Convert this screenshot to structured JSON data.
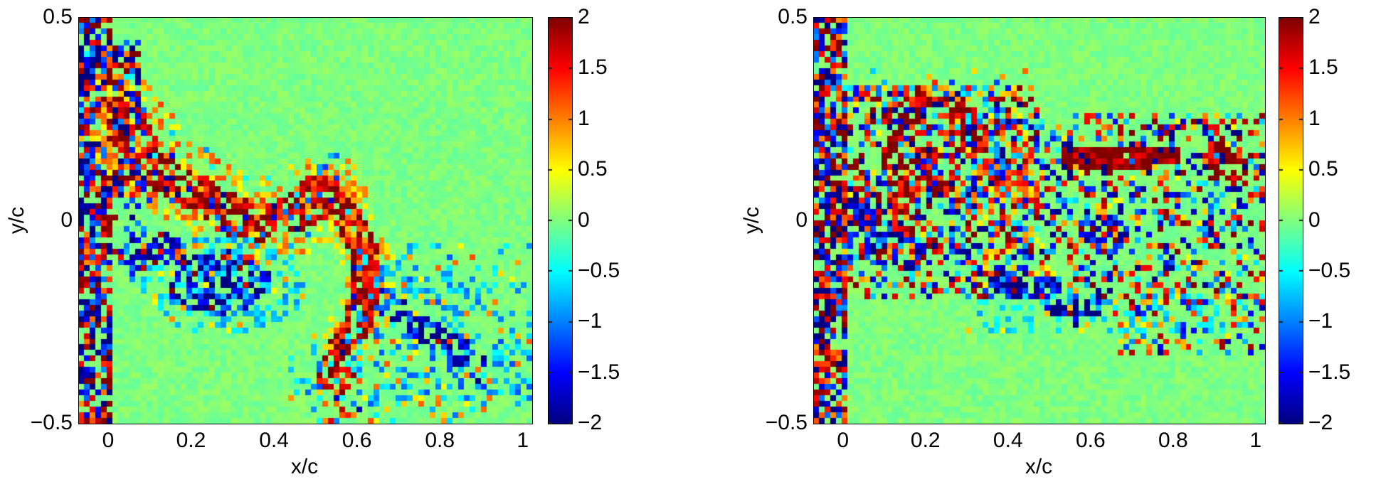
{
  "chart_data": {
    "type": "heatmap",
    "colormap": "jet",
    "figures": [
      {
        "id": "left-vorticity-field",
        "xlabel": "x/c",
        "ylabel": "y/c",
        "xlim": [
          -0.072,
          1.021
        ],
        "ylim": [
          -0.5,
          0.5
        ],
        "xticks": [
          0,
          0.2,
          0.4,
          0.6,
          0.8,
          1
        ],
        "xtick_labels": [
          "0",
          "0.2",
          "0.4",
          "0.6",
          "0.8",
          "1"
        ],
        "yticks": [
          0.5,
          0,
          -0.5
        ],
        "ytick_labels": [
          "0.5",
          "0",
          "−0.5"
        ],
        "colorbar": {
          "vmin": -2,
          "vmax": 2,
          "ticks": [
            2,
            1.5,
            1,
            0.5,
            0,
            -0.5,
            -1,
            -1.5,
            -2
          ],
          "tick_labels": [
            "2",
            "1.5",
            "1",
            "0.5",
            "0",
            "−0.5",
            "−1",
            "−1.5",
            "−2"
          ]
        },
        "grid": {
          "cols": 80,
          "rows": 72
        },
        "seed": 1337,
        "background_noise": 0.11,
        "features": [
          {
            "shape": "rect",
            "x": [
              -0.072,
              0.008
            ],
            "y": [
              -0.5,
              0.5
            ],
            "density": 0.72,
            "amp": [
              0.9,
              2.5
            ],
            "neg_prob": 0.52
          },
          {
            "shape": "rect",
            "x": [
              -0.072,
              -0.034
            ],
            "y": [
              0.4,
              0.5
            ],
            "density": 0.5,
            "amp": [
              0.4,
              1.0
            ],
            "neg_prob": 0.9
          },
          {
            "shape": "rect",
            "x": [
              0.005,
              0.075
            ],
            "y": [
              0.06,
              0.44
            ],
            "density": 0.78,
            "amp": [
              1.0,
              2.5
            ],
            "neg_prob": 0.6
          },
          {
            "shape": "ellipse",
            "c": [
              0.06,
              -0.02
            ],
            "r": [
              0.05,
              0.13
            ],
            "density": 0.45,
            "amp": [
              0.8,
              2.2
            ],
            "neg_prob": 0.7
          },
          {
            "shape": "path",
            "pts": [
              [
                0.02,
                0.26
              ],
              [
                0.12,
                0.13
              ],
              [
                0.24,
                0.04
              ],
              [
                0.34,
                -0.01
              ],
              [
                0.44,
                0.02
              ],
              [
                0.52,
                0.06
              ]
            ],
            "width": 0.105,
            "density": 0.38,
            "amp": [
              0.4,
              1.3
            ],
            "neg_prob": 0.17
          },
          {
            "shape": "path",
            "pts": [
              [
                0.02,
                0.26
              ],
              [
                0.12,
                0.13
              ],
              [
                0.24,
                0.04
              ],
              [
                0.34,
                -0.01
              ],
              [
                0.44,
                0.02
              ],
              [
                0.52,
                0.06
              ]
            ],
            "width": 0.05,
            "density": 0.6,
            "amp": [
              1.0,
              2.4
            ],
            "neg_prob": 0.15
          },
          {
            "shape": "path",
            "pts": [
              [
                0.5,
                0.08
              ],
              [
                0.57,
                0.02
              ],
              [
                0.615,
                -0.07
              ],
              [
                0.625,
                -0.17
              ],
              [
                0.595,
                -0.26
              ],
              [
                0.56,
                -0.31
              ]
            ],
            "width": 0.06,
            "density": 0.3,
            "amp": [
              0.5,
              1.1
            ],
            "neg_prob": 0.12
          },
          {
            "shape": "path",
            "pts": [
              [
                0.5,
                0.08
              ],
              [
                0.57,
                0.02
              ],
              [
                0.615,
                -0.07
              ],
              [
                0.625,
                -0.17
              ],
              [
                0.595,
                -0.26
              ],
              [
                0.56,
                -0.31
              ]
            ],
            "width": 0.034,
            "density": 0.85,
            "amp": [
              1.1,
              2.5
            ],
            "neg_prob": 0.06
          },
          {
            "shape": "ellipse",
            "c": [
              0.28,
              -0.16
            ],
            "r": [
              0.2,
              0.12
            ],
            "density": 0.38,
            "amp": [
              0.4,
              1.0
            ],
            "neg_prob": 0.85
          },
          {
            "shape": "ellipse",
            "c": [
              0.26,
              -0.15
            ],
            "r": [
              0.13,
              0.08
            ],
            "density": 0.6,
            "amp": [
              1.0,
              2.5
            ],
            "neg_prob": 0.88
          },
          {
            "shape": "ellipse",
            "c": [
              0.13,
              -0.07
            ],
            "r": [
              0.045,
              0.04
            ],
            "density": 0.55,
            "amp": [
              1.0,
              2.2
            ],
            "neg_prob": 0.85
          },
          {
            "shape": "rect",
            "x": [
              0.44,
              1.021
            ],
            "y": [
              -0.5,
              -0.28
            ],
            "density": 0.16,
            "amp": [
              0.4,
              1.2
            ],
            "neg_prob": 0.6
          },
          {
            "shape": "rect",
            "x": [
              0.6,
              1.021
            ],
            "y": [
              -0.45,
              -0.06
            ],
            "density": 0.22,
            "amp": [
              0.4,
              1.2
            ],
            "neg_prob": 0.75
          },
          {
            "shape": "path",
            "pts": [
              [
                0.66,
                -0.2
              ],
              [
                0.76,
                -0.27
              ],
              [
                0.87,
                -0.34
              ],
              [
                0.9,
                -0.38
              ]
            ],
            "width": 0.032,
            "density": 0.55,
            "amp": [
              1.0,
              2.4
            ],
            "neg_prob": 0.92
          },
          {
            "shape": "path",
            "pts": [
              [
                0.63,
                -0.1
              ],
              [
                0.75,
                -0.16
              ],
              [
                0.85,
                -0.2
              ]
            ],
            "width": 0.03,
            "density": 0.4,
            "amp": [
              0.5,
              1.2
            ],
            "neg_prob": 0.85
          },
          {
            "shape": "ellipse",
            "c": [
              0.545,
              -0.385
            ],
            "r": [
              0.05,
              0.055
            ],
            "density": 0.5,
            "amp": [
              1.0,
              2.3
            ],
            "neg_prob": 0.12
          },
          {
            "shape": "ellipse",
            "c": [
              0.56,
              -0.47
            ],
            "r": [
              0.05,
              0.035
            ],
            "density": 0.5,
            "amp": [
              0.9,
              2.0
            ],
            "neg_prob": 0.15
          }
        ]
      },
      {
        "id": "right-vorticity-field",
        "xlabel": "x/c",
        "ylabel": "y/c",
        "xlim": [
          -0.072,
          1.021
        ],
        "ylim": [
          -0.5,
          0.5
        ],
        "xticks": [
          0,
          0.2,
          0.4,
          0.6,
          0.8,
          1
        ],
        "xtick_labels": [
          "0",
          "0.2",
          "0.4",
          "0.6",
          "0.8",
          "1"
        ],
        "yticks": [
          0.5,
          0,
          -0.5
        ],
        "ytick_labels": [
          "0.5",
          "0",
          "−0.5"
        ],
        "colorbar": {
          "vmin": -2,
          "vmax": 2,
          "ticks": [
            2,
            1.5,
            1,
            0.5,
            0,
            -0.5,
            -1,
            -1.5,
            -2
          ],
          "tick_labels": [
            "2",
            "1.5",
            "1",
            "0.5",
            "0",
            "−0.5",
            "−1",
            "−1.5",
            "−2"
          ]
        },
        "grid": {
          "cols": 80,
          "rows": 72
        },
        "seed": 4242,
        "background_noise": 0.11,
        "features": [
          {
            "shape": "rect",
            "x": [
              -0.072,
              0.005
            ],
            "y": [
              -0.5,
              0.5
            ],
            "density": 0.72,
            "amp": [
              0.9,
              2.5
            ],
            "neg_prob": 0.5
          },
          {
            "shape": "rect",
            "x": [
              0.0,
              0.47
            ],
            "y": [
              -0.08,
              0.33
            ],
            "density": 0.5,
            "amp": [
              0.5,
              2.4
            ],
            "neg_prob": 0.45
          },
          {
            "shape": "rect",
            "x": [
              0.0,
              0.35
            ],
            "y": [
              -0.2,
              -0.06
            ],
            "density": 0.32,
            "amp": [
              0.5,
              2.0
            ],
            "neg_prob": 0.6
          },
          {
            "shape": "path",
            "pts": [
              [
                0.13,
                0.25
              ],
              [
                0.2,
                0.28
              ],
              [
                0.27,
                0.26
              ],
              [
                0.31,
                0.21
              ]
            ],
            "width": 0.035,
            "density": 0.65,
            "amp": [
              1.2,
              2.4
            ],
            "neg_prob": 0.12
          },
          {
            "shape": "path",
            "pts": [
              [
                0.12,
                0.18
              ],
              [
                0.13,
                0.08
              ],
              [
                0.15,
                -0.02
              ]
            ],
            "width": 0.026,
            "density": 0.7,
            "amp": [
              1.3,
              2.5
            ],
            "neg_prob": 0.12
          },
          {
            "shape": "ellipse",
            "c": [
              0.05,
              0.0
            ],
            "r": [
              0.06,
              0.07
            ],
            "density": 0.6,
            "amp": [
              1.2,
              2.5
            ],
            "neg_prob": 0.88
          },
          {
            "shape": "ellipse",
            "c": [
              0.21,
              0.12
            ],
            "r": [
              0.07,
              0.055
            ],
            "density": 0.5,
            "amp": [
              1.2,
              2.4
            ],
            "neg_prob": 0.25
          },
          {
            "shape": "rect",
            "x": [
              0.3,
              1.021
            ],
            "y": [
              -0.2,
              0.26
            ],
            "density": 0.4,
            "amp": [
              0.4,
              2.2
            ],
            "neg_prob": 0.5
          },
          {
            "shape": "rect",
            "x": [
              0.05,
              0.45
            ],
            "y": [
              0.3,
              0.375
            ],
            "density": 0.18,
            "amp": [
              0.5,
              1.5
            ],
            "neg_prob": 0.45
          },
          {
            "shape": "path",
            "pts": [
              [
                0.55,
                0.155
              ],
              [
                0.63,
                0.15
              ],
              [
                0.72,
                0.15
              ],
              [
                0.79,
                0.16
              ]
            ],
            "width": 0.024,
            "density": 0.9,
            "amp": [
              1.5,
              2.5
            ],
            "neg_prob": 0.05
          },
          {
            "shape": "ellipse",
            "c": [
              0.905,
              0.15
            ],
            "r": [
              0.035,
              0.05
            ],
            "density": 0.8,
            "amp": [
              1.4,
              2.5
            ],
            "neg_prob": 0.08
          },
          {
            "shape": "path",
            "pts": [
              [
                0.95,
                0.1
              ],
              [
                1.0,
                0.07
              ]
            ],
            "width": 0.02,
            "density": 0.5,
            "amp": [
              1.0,
              2.0
            ],
            "neg_prob": 0.15
          },
          {
            "shape": "ellipse",
            "c": [
              0.63,
              -0.03
            ],
            "r": [
              0.06,
              0.05
            ],
            "density": 0.55,
            "amp": [
              1.0,
              2.3
            ],
            "neg_prob": 0.85
          },
          {
            "shape": "path",
            "pts": [
              [
                0.49,
                -0.16
              ],
              [
                0.53,
                -0.22
              ],
              [
                0.58,
                -0.235
              ],
              [
                0.62,
                -0.2
              ]
            ],
            "width": 0.028,
            "density": 0.7,
            "amp": [
              1.2,
              2.5
            ],
            "neg_prob": 0.92
          },
          {
            "shape": "ellipse",
            "c": [
              0.4,
              -0.15
            ],
            "r": [
              0.05,
              0.04
            ],
            "density": 0.6,
            "amp": [
              1.0,
              2.3
            ],
            "neg_prob": 0.9
          },
          {
            "shape": "ellipse",
            "c": [
              0.12,
              -0.08
            ],
            "r": [
              0.08,
              0.05
            ],
            "density": 0.5,
            "amp": [
              1.0,
              2.4
            ],
            "neg_prob": 0.85
          },
          {
            "shape": "path",
            "pts": [
              [
                0.35,
                0.13
              ],
              [
                0.42,
                0.08
              ],
              [
                0.47,
                0.04
              ]
            ],
            "width": 0.025,
            "density": 0.6,
            "amp": [
              0.8,
              1.8
            ],
            "neg_prob": 0.15
          },
          {
            "shape": "rect",
            "x": [
              0.65,
              1.021
            ],
            "y": [
              -0.33,
              -0.18
            ],
            "density": 0.32,
            "amp": [
              0.5,
              2.0
            ],
            "neg_prob": 0.5
          },
          {
            "shape": "rect",
            "x": [
              0.3,
              1.021
            ],
            "y": [
              -0.28,
              -0.18
            ],
            "density": 0.2,
            "amp": [
              0.4,
              0.9
            ],
            "neg_prob": 0.8
          }
        ]
      }
    ]
  }
}
